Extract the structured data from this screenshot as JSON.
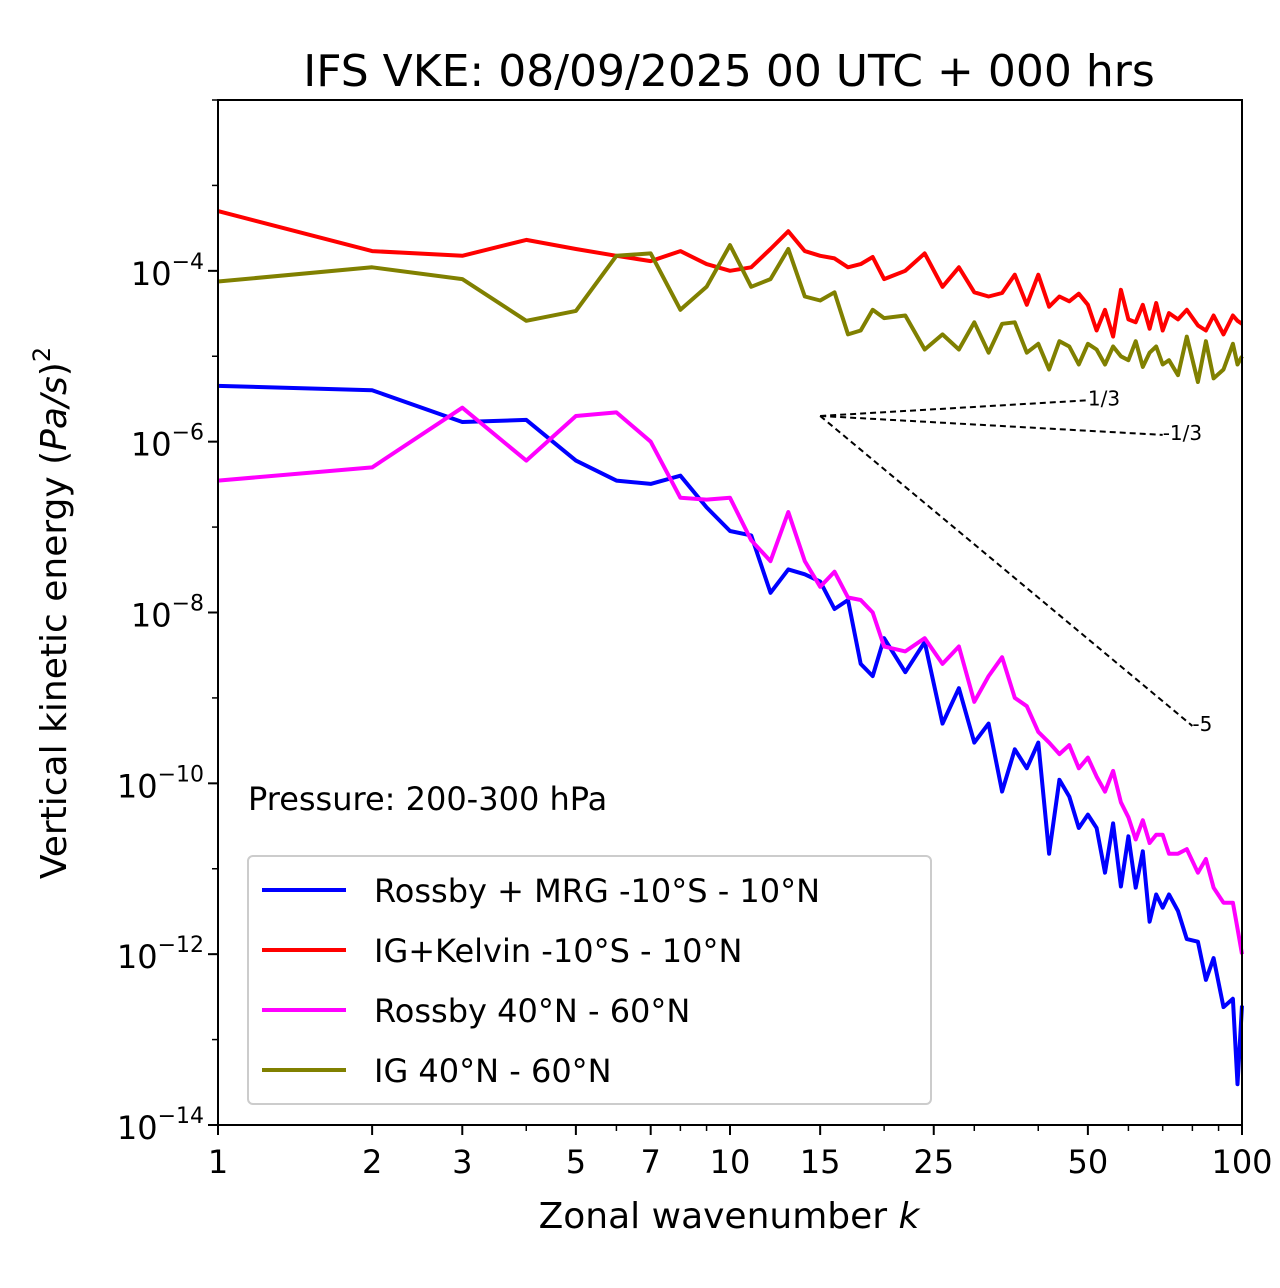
{
  "chart_data": {
    "type": "line",
    "title": "IFS VKE: 08/09/2025 00 UTC + 000 hrs",
    "xlabel": "Zonal wavenumber",
    "xlabel_var": "k",
    "ylabel_prefix": "Vertical kinetic energy (",
    "ylabel_var": "Pa/s",
    "ylabel_suffix": ")",
    "ylabel_exp": "2",
    "annotation": "Pressure: 200-300 hPa",
    "x_scale": "log",
    "y_scale": "log",
    "xlim": [
      1,
      100
    ],
    "ylim": [
      1e-14,
      0.01
    ],
    "x_ticks": [
      {
        "value": 1,
        "label": "1"
      },
      {
        "value": 2,
        "label": "2"
      },
      {
        "value": 3,
        "label": "3"
      },
      {
        "value": 5,
        "label": "5"
      },
      {
        "value": 7,
        "label": "7"
      },
      {
        "value": 10,
        "label": "10"
      },
      {
        "value": 15,
        "label": "15"
      },
      {
        "value": 25,
        "label": "25"
      },
      {
        "value": 50,
        "label": "50"
      },
      {
        "value": 100,
        "label": "100"
      }
    ],
    "y_ticks": [
      {
        "value": 0.0001,
        "base": "10",
        "exp": "−4"
      },
      {
        "value": 1e-06,
        "base": "10",
        "exp": "−6"
      },
      {
        "value": 1e-08,
        "base": "10",
        "exp": "−8"
      },
      {
        "value": 1e-10,
        "base": "10",
        "exp": "−10"
      },
      {
        "value": 1e-12,
        "base": "10",
        "exp": "−12"
      },
      {
        "value": 1e-14,
        "base": "10",
        "exp": "−14"
      }
    ],
    "legend_position": "bottom-left",
    "grid": false,
    "series": [
      {
        "name": "Rossby + MRG -10°S - 10°N",
        "color": "#0000ff",
        "points": [
          [
            1,
            4.5e-06
          ],
          [
            2,
            4e-06
          ],
          [
            3,
            1.7e-06
          ],
          [
            4,
            1.8e-06
          ],
          [
            5,
            6e-07
          ],
          [
            6,
            3.5e-07
          ],
          [
            7,
            3.2e-07
          ],
          [
            8,
            4e-07
          ],
          [
            9,
            1.7e-07
          ],
          [
            10,
            9e-08
          ],
          [
            11,
            8e-08
          ],
          [
            12,
            1.7e-08
          ],
          [
            13,
            3.2e-08
          ],
          [
            14,
            2.8e-08
          ],
          [
            15,
            2.3e-08
          ],
          [
            16,
            1.1e-08
          ],
          [
            17,
            1.4e-08
          ],
          [
            18,
            2.5e-09
          ],
          [
            19,
            1.8e-09
          ],
          [
            20,
            5e-09
          ],
          [
            22,
            2e-09
          ],
          [
            24,
            4.5e-09
          ],
          [
            26,
            5e-10
          ],
          [
            28,
            1.3e-09
          ],
          [
            30,
            3e-10
          ],
          [
            32,
            5e-10
          ],
          [
            34,
            8e-11
          ],
          [
            36,
            2.5e-10
          ],
          [
            38,
            1.5e-10
          ],
          [
            40,
            3e-10
          ],
          [
            42,
            1.5e-11
          ],
          [
            44,
            1.1e-10
          ],
          [
            46,
            7e-11
          ],
          [
            48,
            3e-11
          ],
          [
            50,
            4.3e-11
          ],
          [
            52,
            3e-11
          ],
          [
            54,
            9e-12
          ],
          [
            56,
            3.4e-11
          ],
          [
            58,
            6.2e-12
          ],
          [
            60,
            2.4e-11
          ],
          [
            62,
            6e-12
          ],
          [
            64,
            1.6e-11
          ],
          [
            66,
            2.4e-12
          ],
          [
            68,
            5e-12
          ],
          [
            70,
            3.5e-12
          ],
          [
            72,
            5e-12
          ],
          [
            75,
            3.2e-12
          ],
          [
            78,
            1.5e-12
          ],
          [
            82,
            1.4e-12
          ],
          [
            85,
            5e-13
          ],
          [
            88,
            9e-13
          ],
          [
            92,
            2.4e-13
          ],
          [
            96,
            3e-13
          ],
          [
            98,
            3e-14
          ],
          [
            100,
            2.5e-13
          ]
        ]
      },
      {
        "name": "IG+Kelvin -10°S - 10°N",
        "color": "#ff0000",
        "points": [
          [
            1,
            0.0005
          ],
          [
            2,
            0.00017
          ],
          [
            3,
            0.00015
          ],
          [
            4,
            0.00023
          ],
          [
            5,
            0.00018
          ],
          [
            6,
            0.00015
          ],
          [
            7,
            0.00013
          ],
          [
            8,
            0.00017
          ],
          [
            9,
            0.00012
          ],
          [
            10,
            0.0001
          ],
          [
            11,
            0.00011
          ],
          [
            12,
            0.00018
          ],
          [
            13,
            0.00029
          ],
          [
            14,
            0.00017
          ],
          [
            15,
            0.00015
          ],
          [
            16,
            0.00014
          ],
          [
            17,
            0.00011
          ],
          [
            18,
            0.00012
          ],
          [
            19,
            0.000145
          ],
          [
            20,
            8e-05
          ],
          [
            22,
            0.0001
          ],
          [
            24,
            0.00016
          ],
          [
            26,
            6.5e-05
          ],
          [
            28,
            0.00011
          ],
          [
            30,
            5.6e-05
          ],
          [
            32,
            5e-05
          ],
          [
            34,
            5.5e-05
          ],
          [
            36,
            9e-05
          ],
          [
            38,
            4e-05
          ],
          [
            40,
            9e-05
          ],
          [
            42,
            3.8e-05
          ],
          [
            44,
            5e-05
          ],
          [
            46,
            4.4e-05
          ],
          [
            48,
            5.4e-05
          ],
          [
            50,
            4e-05
          ],
          [
            52,
            2e-05
          ],
          [
            54,
            3.5e-05
          ],
          [
            56,
            1.7e-05
          ],
          [
            58,
            6e-05
          ],
          [
            60,
            2.7e-05
          ],
          [
            62,
            2.5e-05
          ],
          [
            64,
            4e-05
          ],
          [
            66,
            2.1e-05
          ],
          [
            68,
            4.2e-05
          ],
          [
            70,
            2e-05
          ],
          [
            72,
            3.2e-05
          ],
          [
            75,
            2.7e-05
          ],
          [
            78,
            3.5e-05
          ],
          [
            82,
            2.3e-05
          ],
          [
            85,
            2e-05
          ],
          [
            88,
            3e-05
          ],
          [
            92,
            1.8e-05
          ],
          [
            96,
            3e-05
          ],
          [
            98,
            2.6e-05
          ],
          [
            100,
            2.4e-05
          ]
        ]
      },
      {
        "name": "Rossby 40°N - 60°N",
        "color": "#ff00ff",
        "points": [
          [
            1,
            3.5e-07
          ],
          [
            2,
            5e-07
          ],
          [
            3,
            2.5e-06
          ],
          [
            4,
            6e-07
          ],
          [
            5,
            2e-06
          ],
          [
            6,
            2.2e-06
          ],
          [
            7,
            1e-06
          ],
          [
            8,
            2.2e-07
          ],
          [
            9,
            2.1e-07
          ],
          [
            10,
            2.2e-07
          ],
          [
            11,
            7e-08
          ],
          [
            12,
            4e-08
          ],
          [
            13,
            1.5e-07
          ],
          [
            14,
            4e-08
          ],
          [
            15,
            2e-08
          ],
          [
            16,
            3e-08
          ],
          [
            17,
            1.5e-08
          ],
          [
            18,
            1.4e-08
          ],
          [
            19,
            1e-08
          ],
          [
            20,
            4e-09
          ],
          [
            22,
            3.5e-09
          ],
          [
            24,
            5e-09
          ],
          [
            26,
            2.5e-09
          ],
          [
            28,
            4e-09
          ],
          [
            30,
            9e-10
          ],
          [
            32,
            1.8e-09
          ],
          [
            34,
            3e-09
          ],
          [
            36,
            1e-09
          ],
          [
            38,
            8e-10
          ],
          [
            40,
            4e-10
          ],
          [
            42,
            3e-10
          ],
          [
            44,
            2.2e-10
          ],
          [
            46,
            2.8e-10
          ],
          [
            48,
            1.5e-10
          ],
          [
            50,
            2e-10
          ],
          [
            52,
            1.2e-10
          ],
          [
            54,
            8e-11
          ],
          [
            56,
            1.4e-10
          ],
          [
            58,
            6e-11
          ],
          [
            60,
            4e-11
          ],
          [
            62,
            2.2e-11
          ],
          [
            64,
            3.7e-11
          ],
          [
            66,
            2e-11
          ],
          [
            68,
            2.5e-11
          ],
          [
            70,
            2.5e-11
          ],
          [
            72,
            1.5e-11
          ],
          [
            75,
            1.5e-11
          ],
          [
            78,
            1.7e-11
          ],
          [
            82,
            9e-12
          ],
          [
            85,
            1.3e-11
          ],
          [
            88,
            6e-12
          ],
          [
            92,
            4e-12
          ],
          [
            96,
            4e-12
          ],
          [
            98,
            2e-12
          ],
          [
            100,
            1e-12
          ]
        ]
      },
      {
        "name": "IG 40°N - 60°N",
        "color": "#808000",
        "points": [
          [
            1,
            7.5e-05
          ],
          [
            2,
            0.00011
          ],
          [
            3,
            8e-05
          ],
          [
            4,
            2.6e-05
          ],
          [
            5,
            3.4e-05
          ],
          [
            6,
            0.00015
          ],
          [
            7,
            0.00016
          ],
          [
            8,
            3.5e-05
          ],
          [
            9,
            6.5e-05
          ],
          [
            10,
            0.0002
          ],
          [
            11,
            6.5e-05
          ],
          [
            12,
            8e-05
          ],
          [
            13,
            0.00018
          ],
          [
            14,
            5e-05
          ],
          [
            15,
            4.5e-05
          ],
          [
            16,
            5.6e-05
          ],
          [
            17,
            1.8e-05
          ],
          [
            18,
            2e-05
          ],
          [
            19,
            3.5e-05
          ],
          [
            20,
            2.8e-05
          ],
          [
            22,
            3e-05
          ],
          [
            24,
            1.2e-05
          ],
          [
            26,
            1.8e-05
          ],
          [
            28,
            1.2e-05
          ],
          [
            30,
            2.5e-05
          ],
          [
            32,
            1.1e-05
          ],
          [
            34,
            2.4e-05
          ],
          [
            36,
            2.5e-05
          ],
          [
            38,
            1.1e-05
          ],
          [
            40,
            1.4e-05
          ],
          [
            42,
            7e-06
          ],
          [
            44,
            1.5e-05
          ],
          [
            46,
            1.3e-05
          ],
          [
            48,
            8e-06
          ],
          [
            50,
            1.4e-05
          ],
          [
            52,
            1.2e-05
          ],
          [
            54,
            8e-06
          ],
          [
            56,
            1.3e-05
          ],
          [
            58,
            1e-05
          ],
          [
            60,
            9e-06
          ],
          [
            62,
            1.5e-05
          ],
          [
            64,
            7.5e-06
          ],
          [
            66,
            1.1e-05
          ],
          [
            68,
            1.3e-05
          ],
          [
            70,
            8e-06
          ],
          [
            72,
            9e-06
          ],
          [
            75,
            6e-06
          ],
          [
            78,
            1.7e-05
          ],
          [
            82,
            5e-06
          ],
          [
            85,
            1.5e-05
          ],
          [
            88,
            5.5e-06
          ],
          [
            92,
            7e-06
          ],
          [
            96,
            1.4e-05
          ],
          [
            98,
            8e-06
          ],
          [
            100,
            1e-05
          ]
        ]
      }
    ],
    "reference_lines": [
      {
        "label": "1/3",
        "x0": 15,
        "y0": 2e-06,
        "x1": 50,
        "y1": 3.05e-06
      },
      {
        "label": "-1/3",
        "x0": 15,
        "y0": 2e-06,
        "x1": 70,
        "y1": 1.2e-06
      },
      {
        "label": "-5",
        "x0": 15,
        "y0": 2e-06,
        "x1": 80,
        "y1": 4.7e-10
      }
    ]
  }
}
